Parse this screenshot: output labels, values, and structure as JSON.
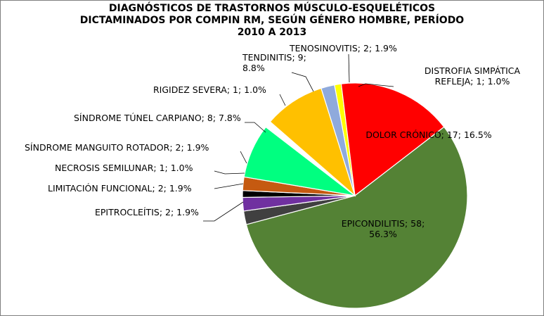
{
  "chart_data": {
    "type": "pie",
    "title_lines": [
      "DIAGNÓSTICOS DE TRASTORNOS MÚSCULO-ESQUELÉTICOS",
      "DICTAMINADOS POR COMPIN RM, SEGÚN GÉNERO HOMBRE, PERÍODO",
      "2010 A 2013"
    ],
    "slices": [
      {
        "name": "DISTROFIA SIMPÁTICA REFLEJA",
        "value": 1,
        "percent": "1.0%",
        "color": "#ffff00",
        "label_lines": [
          "DISTROFIA SIMPÁTICA",
          "REFLEJA; 1; 1.0%"
        ]
      },
      {
        "name": "DOLOR CRÓNICO",
        "value": 17,
        "percent": "16.5%",
        "color": "#ff0000",
        "label_lines": [
          "DOLOR CRÓNICO; 17; 16.5%"
        ]
      },
      {
        "name": "EPICONDILITIS",
        "value": 58,
        "percent": "56.3%",
        "color": "#548235",
        "label_lines": [
          "EPICONDILITIS; 58;",
          "56.3%"
        ]
      },
      {
        "name": "EPITROCLEÍTIS",
        "value": 2,
        "percent": "1.9%",
        "color": "#404040",
        "label_lines": [
          "EPITROCLEÍTIS; 2; 1.9%"
        ]
      },
      {
        "name": "LIMITACIÓN FUNCIONAL",
        "value": 2,
        "percent": "1.9%",
        "color": "#7030a0",
        "label_lines": [
          "LIMITACIÓN FUNCIONAL; 2; 1.9%"
        ]
      },
      {
        "name": "NECROSIS SEMILUNAR",
        "value": 1,
        "percent": "1.0%",
        "color": "#000000",
        "label_lines": [
          "NECROSIS SEMILUNAR; 1; 1.0%"
        ]
      },
      {
        "name": "SÍNDROME MANGUITO ROTADOR",
        "value": 2,
        "percent": "1.9%",
        "color": "#c55a11",
        "label_lines": [
          "SÍNDROME MANGUITO ROTADOR; 2; 1.9%"
        ]
      },
      {
        "name": "SÍNDROME TÚNEL CARPIANO",
        "value": 8,
        "percent": "7.8%",
        "color": "#00ff80",
        "label_lines": [
          "SÍNDROME TÚNEL CARPIANO; 8; 7.8%"
        ]
      },
      {
        "name": "RIGIDEZ SEVERA",
        "value": 1,
        "percent": "1.0%",
        "color": "#ffffff",
        "label_lines": [
          "RIGIDEZ SEVERA; 1; 1.0%"
        ]
      },
      {
        "name": "TENDINITIS",
        "value": 9,
        "percent": "8.8%",
        "color": "#ffc000",
        "label_lines": [
          "TENDINITIS; 9;",
          "8.8%"
        ]
      },
      {
        "name": "TENOSINOVITIS",
        "value": 2,
        "percent": "1.9%",
        "color": "#8faadc",
        "label_lines": [
          "TENOSINOVITIS; 2; 1.9%"
        ]
      }
    ]
  }
}
